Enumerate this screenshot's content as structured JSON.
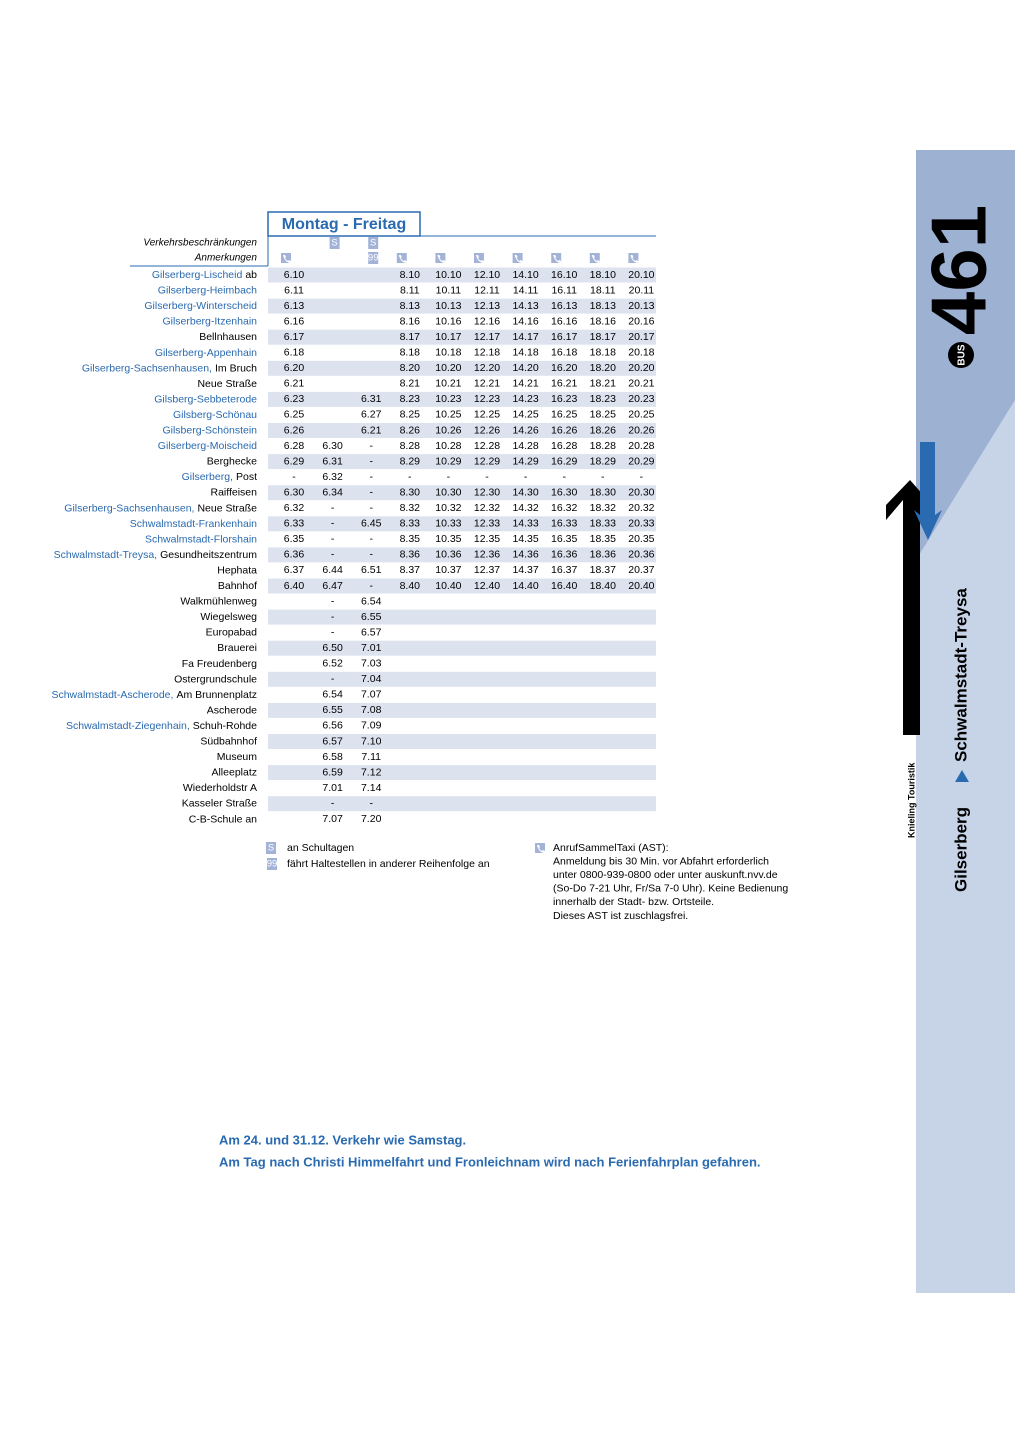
{
  "schedule": {
    "title": "Montag - Freitag",
    "restrictions_label": "Verkehrsbeschränkungen",
    "notes_label": "Anmerkungen",
    "restrictions": [
      null,
      "S",
      "S",
      null,
      null,
      null,
      null,
      null,
      null,
      null
    ],
    "notes": [
      null,
      null,
      "99",
      null,
      null,
      null,
      null,
      null,
      null,
      null
    ],
    "stops": [
      {
        "town": "Gilserberg-Lischeid",
        "stop": "ab",
        "times": [
          "6.10",
          null,
          null,
          "8.10",
          "10.10",
          "12.10",
          "14.10",
          "16.10",
          "18.10",
          "20.10"
        ]
      },
      {
        "town": "Gilserberg-Heimbach",
        "times": [
          "6.11",
          null,
          null,
          "8.11",
          "10.11",
          "12.11",
          "14.11",
          "16.11",
          "18.11",
          "20.11"
        ]
      },
      {
        "town": "Gilserberg-Winterscheid",
        "times": [
          "6.13",
          null,
          null,
          "8.13",
          "10.13",
          "12.13",
          "14.13",
          "16.13",
          "18.13",
          "20.13"
        ]
      },
      {
        "town": "Gilserberg-Itzenhain",
        "times": [
          "6.16",
          null,
          null,
          "8.16",
          "10.16",
          "12.16",
          "14.16",
          "16.16",
          "18.16",
          "20.16"
        ]
      },
      {
        "stop": "Bellnhausen",
        "times": [
          "6.17",
          null,
          null,
          "8.17",
          "10.17",
          "12.17",
          "14.17",
          "16.17",
          "18.17",
          "20.17"
        ]
      },
      {
        "town": "Gilserberg-Appenhain",
        "times": [
          "6.18",
          null,
          null,
          "8.18",
          "10.18",
          "12.18",
          "14.18",
          "16.18",
          "18.18",
          "20.18"
        ]
      },
      {
        "town": "Gilserberg-Sachsenhausen,",
        "stop": "Im Bruch",
        "times": [
          "6.20",
          null,
          null,
          "8.20",
          "10.20",
          "12.20",
          "14.20",
          "16.20",
          "18.20",
          "20.20"
        ]
      },
      {
        "stop": "Neue Straße",
        "times": [
          "6.21",
          null,
          null,
          "8.21",
          "10.21",
          "12.21",
          "14.21",
          "16.21",
          "18.21",
          "20.21"
        ]
      },
      {
        "town": "Gilsberg-Sebbeterode",
        "times": [
          "6.23",
          null,
          "6.31",
          "8.23",
          "10.23",
          "12.23",
          "14.23",
          "16.23",
          "18.23",
          "20.23"
        ]
      },
      {
        "town": "Gilsberg-Schönau",
        "times": [
          "6.25",
          null,
          "6.27",
          "8.25",
          "10.25",
          "12.25",
          "14.25",
          "16.25",
          "18.25",
          "20.25"
        ]
      },
      {
        "town": "Gilsberg-Schönstein",
        "times": [
          "6.26",
          null,
          "6.21",
          "8.26",
          "10.26",
          "12.26",
          "14.26",
          "16.26",
          "18.26",
          "20.26"
        ]
      },
      {
        "town": "Gilserberg-Moischeid",
        "times": [
          "6.28",
          "6.30",
          "-",
          "8.28",
          "10.28",
          "12.28",
          "14.28",
          "16.28",
          "18.28",
          "20.28"
        ]
      },
      {
        "stop": "Berghecke",
        "times": [
          "6.29",
          "6.31",
          "-",
          "8.29",
          "10.29",
          "12.29",
          "14.29",
          "16.29",
          "18.29",
          "20.29"
        ]
      },
      {
        "town": "Gilserberg,",
        "stop": "Post",
        "times": [
          "-",
          "6.32",
          "-",
          "-",
          "-",
          "-",
          "-",
          "-",
          "-",
          "-"
        ]
      },
      {
        "stop": "Raiffeisen",
        "times": [
          "6.30",
          "6.34",
          "-",
          "8.30",
          "10.30",
          "12.30",
          "14.30",
          "16.30",
          "18.30",
          "20.30"
        ]
      },
      {
        "town": "Gilserberg-Sachsenhausen,",
        "stop": "Neue Straße",
        "times": [
          "6.32",
          "-",
          "-",
          "8.32",
          "10.32",
          "12.32",
          "14.32",
          "16.32",
          "18.32",
          "20.32"
        ]
      },
      {
        "town": "Schwalmstadt-Frankenhain",
        "times": [
          "6.33",
          "-",
          "6.45",
          "8.33",
          "10.33",
          "12.33",
          "14.33",
          "16.33",
          "18.33",
          "20.33"
        ]
      },
      {
        "town": "Schwalmstadt-Florshain",
        "times": [
          "6.35",
          "-",
          "-",
          "8.35",
          "10.35",
          "12.35",
          "14.35",
          "16.35",
          "18.35",
          "20.35"
        ]
      },
      {
        "town": "Schwalmstadt-Treysa,",
        "stop": "Gesundheitszentrum",
        "times": [
          "6.36",
          "-",
          "-",
          "8.36",
          "10.36",
          "12.36",
          "14.36",
          "16.36",
          "18.36",
          "20.36"
        ]
      },
      {
        "stop": "Hephata",
        "times": [
          "6.37",
          "6.44",
          "6.51",
          "8.37",
          "10.37",
          "12.37",
          "14.37",
          "16.37",
          "18.37",
          "20.37"
        ]
      },
      {
        "stop": "Bahnhof",
        "times": [
          "6.40",
          "6.47",
          "-",
          "8.40",
          "10.40",
          "12.40",
          "14.40",
          "16.40",
          "18.40",
          "20.40"
        ]
      },
      {
        "stop": "Walkmühlenweg",
        "times": [
          null,
          "-",
          "6.54",
          null,
          null,
          null,
          null,
          null,
          null,
          null
        ]
      },
      {
        "stop": "Wiegelsweg",
        "times": [
          null,
          "-",
          "6.55",
          null,
          null,
          null,
          null,
          null,
          null,
          null
        ]
      },
      {
        "stop": "Europabad",
        "times": [
          null,
          "-",
          "6.57",
          null,
          null,
          null,
          null,
          null,
          null,
          null
        ]
      },
      {
        "stop": "Brauerei",
        "times": [
          null,
          "6.50",
          "7.01",
          null,
          null,
          null,
          null,
          null,
          null,
          null
        ]
      },
      {
        "stop": "Fa Freudenberg",
        "times": [
          null,
          "6.52",
          "7.03",
          null,
          null,
          null,
          null,
          null,
          null,
          null
        ]
      },
      {
        "stop": "Ostergrundschule",
        "times": [
          null,
          "-",
          "7.04",
          null,
          null,
          null,
          null,
          null,
          null,
          null
        ]
      },
      {
        "town": "Schwalmstadt-Ascherode,",
        "stop": "Am Brunnenplatz",
        "times": [
          null,
          "6.54",
          "7.07",
          null,
          null,
          null,
          null,
          null,
          null,
          null
        ]
      },
      {
        "stop": "Ascherode",
        "times": [
          null,
          "6.55",
          "7.08",
          null,
          null,
          null,
          null,
          null,
          null,
          null
        ]
      },
      {
        "town": "Schwalmstadt-Ziegenhain,",
        "stop": "Schuh-Rohde",
        "times": [
          null,
          "6.56",
          "7.09",
          null,
          null,
          null,
          null,
          null,
          null,
          null
        ]
      },
      {
        "stop": "Südbahnhof",
        "times": [
          null,
          "6.57",
          "7.10",
          null,
          null,
          null,
          null,
          null,
          null,
          null
        ]
      },
      {
        "stop": "Museum",
        "times": [
          null,
          "6.58",
          "7.11",
          null,
          null,
          null,
          null,
          null,
          null,
          null
        ]
      },
      {
        "stop": "Alleeplatz",
        "times": [
          null,
          "6.59",
          "7.12",
          null,
          null,
          null,
          null,
          null,
          null,
          null
        ]
      },
      {
        "stop": "Wiederholdstr A",
        "times": [
          null,
          "7.01",
          "7.14",
          null,
          null,
          null,
          null,
          null,
          null,
          null
        ]
      },
      {
        "stop": "Kasseler Straße",
        "times": [
          null,
          "-",
          "-",
          null,
          null,
          null,
          null,
          null,
          null,
          null
        ]
      },
      {
        "stop": "C-B-Schule an",
        "times": [
          null,
          "7.07",
          "7.20",
          null,
          null,
          null,
          null,
          null,
          null,
          null
        ]
      }
    ]
  },
  "legend": {
    "school": {
      "symbol": "S",
      "text": "an Schultagen"
    },
    "order": {
      "symbol": "99",
      "text": "fährt Haltestellen in anderer Reihenfolge an"
    },
    "ast": [
      "AnrufSammelTaxi (AST):",
      "Anmeldung bis 30 Min. vor Abfahrt erforderlich",
      "unter 0800-939-0800 oder unter auskunft.nvv.de",
      "(So-Do 7-21 Uhr, Fr/Sa 7-0 Uhr). Keine Bedienung",
      "innerhalb der Stadt- bzw. Ortsteile.",
      "Dieses AST ist zuschlagsfrei."
    ]
  },
  "footer": [
    "Am 24. und 31.12. Verkehr wie Samstag.",
    "Am Tag nach Christi Himmelfahrt und Fronleichnam wird nach Ferienfahrplan gefahren."
  ],
  "sidebar": {
    "number": "461",
    "badge": "BUS",
    "route_from": "Gilserberg",
    "route_to": "Schwalmstadt-Treysa",
    "publisher": "Knieling Touristik"
  }
}
